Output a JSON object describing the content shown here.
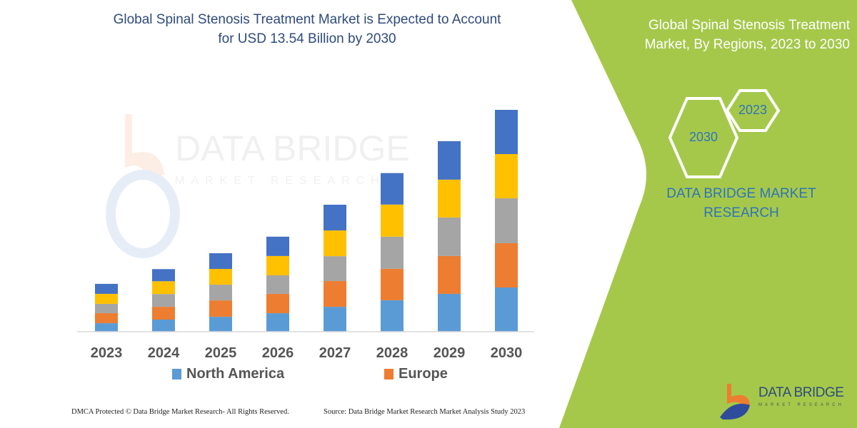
{
  "header": {
    "title_line1": "Global Spinal Stenosis Treatment Market is Expected to Account",
    "title_line2": "for USD 13.54 Billion by 2030"
  },
  "side_panel": {
    "title_line1": "Global Spinal Stenosis Treatment",
    "title_line2": "Market, By Regions, 2023 to 2030",
    "hex_start": "2023",
    "hex_end": "2030",
    "brand_line1": "DATA BRIDGE MARKET",
    "brand_line2": "RESEARCH",
    "logo_text": "DATA BRIDGE",
    "logo_subtext": "MARKET RESEARCH",
    "background_color": "#a5c84b"
  },
  "watermark": {
    "text": "DATA BRIDGE",
    "subtext": "MARKET RESEARCH"
  },
  "footer": {
    "left": "DMCA Protected © Data Bridge Market Research-  All Rights Reserved.",
    "right": "Source: Data Bridge Market Research  Market Analysis Study 2023"
  },
  "chart_data": {
    "type": "bar",
    "stacked": true,
    "title": "Global Spinal Stenosis Treatment Market is Expected to Account for USD 13.54 Billion by 2030",
    "xlabel": "",
    "ylabel": "",
    "y_axis_visible": false,
    "grid": false,
    "legend_position": "bottom",
    "categories": [
      "2023",
      "2024",
      "2025",
      "2026",
      "2027",
      "2028",
      "2029",
      "2030"
    ],
    "ylim": [
      0,
      13.54
    ],
    "series": [
      {
        "name": "North America",
        "color": "#5b9bd5",
        "values": [
          0.52,
          0.74,
          0.91,
          1.13,
          1.52,
          1.92,
          2.31,
          2.7
        ]
      },
      {
        "name": "Europe",
        "color": "#ed7d31",
        "values": [
          0.61,
          0.78,
          1.0,
          1.18,
          1.57,
          1.92,
          2.31,
          2.7
        ]
      },
      {
        "color": "#a5a5a5",
        "values": [
          0.57,
          0.78,
          0.96,
          1.13,
          1.52,
          1.96,
          2.35,
          2.74
        ]
      },
      {
        "color": "#ffc000",
        "values": [
          0.61,
          0.78,
          0.96,
          1.18,
          1.57,
          1.96,
          2.31,
          2.7
        ]
      },
      {
        "color": "#4472c4",
        "values": [
          0.61,
          0.74,
          0.96,
          1.18,
          1.57,
          1.92,
          2.35,
          2.7
        ]
      }
    ]
  }
}
